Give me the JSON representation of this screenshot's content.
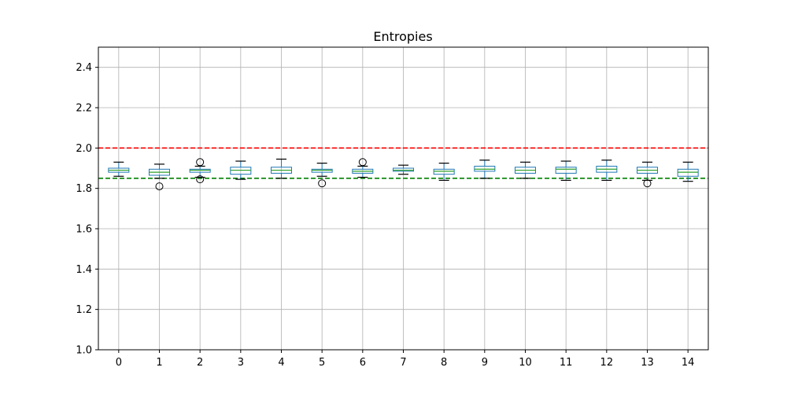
{
  "chart_data": {
    "type": "box",
    "title": "Entropies",
    "xlabel": "",
    "ylabel": "",
    "ylim": [
      1.0,
      2.5
    ],
    "yticks": [
      1.0,
      1.2,
      1.4,
      1.6,
      1.8,
      2.0,
      2.2,
      2.4
    ],
    "ytick_labels": [
      "1.0",
      "1.2",
      "1.4",
      "1.6",
      "1.8",
      "2.0",
      "2.2",
      "2.4"
    ],
    "grid": true,
    "box_color": "#1f77b4",
    "median_color": "#2ca02c",
    "reference_lines": [
      {
        "y": 2.0,
        "color": "#ff0000",
        "style": "dashed"
      },
      {
        "y": 1.85,
        "color": "#008000",
        "style": "dashed"
      }
    ],
    "categories": [
      "0",
      "1",
      "2",
      "3",
      "4",
      "5",
      "6",
      "7",
      "8",
      "9",
      "10",
      "11",
      "12",
      "13",
      "14"
    ],
    "boxes": [
      {
        "whislo": 1.86,
        "q1": 1.88,
        "med": 1.89,
        "q3": 1.9,
        "whishi": 1.93,
        "fliers": []
      },
      {
        "whislo": 1.85,
        "q1": 1.865,
        "med": 1.88,
        "q3": 1.895,
        "whishi": 1.92,
        "fliers": [
          1.81
        ]
      },
      {
        "whislo": 1.855,
        "q1": 1.88,
        "med": 1.89,
        "q3": 1.895,
        "whishi": 1.91,
        "fliers": [
          1.93,
          1.845
        ]
      },
      {
        "whislo": 1.845,
        "q1": 1.87,
        "med": 1.89,
        "q3": 1.905,
        "whishi": 1.935,
        "fliers": []
      },
      {
        "whislo": 1.85,
        "q1": 1.875,
        "med": 1.89,
        "q3": 1.905,
        "whishi": 1.945,
        "fliers": []
      },
      {
        "whislo": 1.86,
        "q1": 1.88,
        "med": 1.89,
        "q3": 1.895,
        "whishi": 1.925,
        "fliers": [
          1.825
        ]
      },
      {
        "whislo": 1.855,
        "q1": 1.875,
        "med": 1.885,
        "q3": 1.895,
        "whishi": 1.91,
        "fliers": [
          1.93
        ]
      },
      {
        "whislo": 1.87,
        "q1": 1.885,
        "med": 1.89,
        "q3": 1.9,
        "whishi": 1.915,
        "fliers": []
      },
      {
        "whislo": 1.84,
        "q1": 1.87,
        "med": 1.885,
        "q3": 1.895,
        "whishi": 1.925,
        "fliers": []
      },
      {
        "whislo": 1.85,
        "q1": 1.885,
        "med": 1.895,
        "q3": 1.91,
        "whishi": 1.94,
        "fliers": []
      },
      {
        "whislo": 1.85,
        "q1": 1.875,
        "med": 1.89,
        "q3": 1.905,
        "whishi": 1.93,
        "fliers": []
      },
      {
        "whislo": 1.84,
        "q1": 1.875,
        "med": 1.895,
        "q3": 1.905,
        "whishi": 1.935,
        "fliers": []
      },
      {
        "whislo": 1.84,
        "q1": 1.88,
        "med": 1.895,
        "q3": 1.91,
        "whishi": 1.94,
        "fliers": []
      },
      {
        "whislo": 1.84,
        "q1": 1.875,
        "med": 1.89,
        "q3": 1.905,
        "whishi": 1.93,
        "fliers": [
          1.825
        ]
      },
      {
        "whislo": 1.835,
        "q1": 1.86,
        "med": 1.88,
        "q3": 1.895,
        "whishi": 1.93,
        "fliers": []
      }
    ]
  }
}
